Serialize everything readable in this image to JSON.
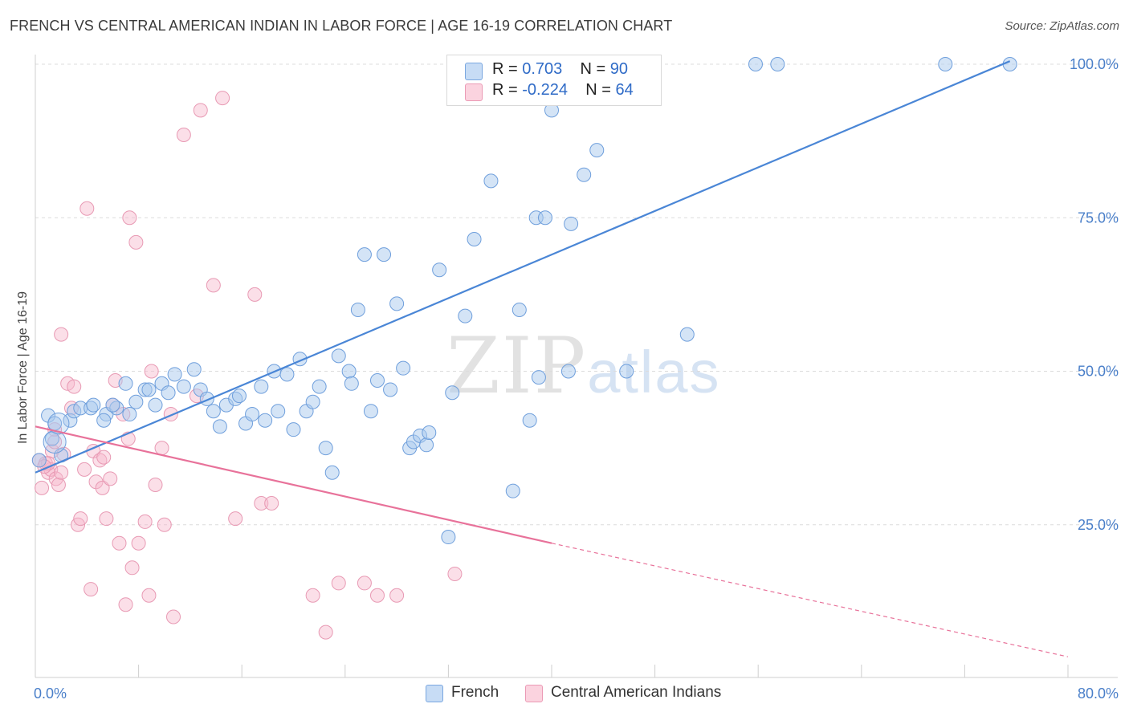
{
  "header": {
    "title": "FRENCH VS CENTRAL AMERICAN INDIAN IN LABOR FORCE | AGE 16-19 CORRELATION CHART",
    "source": "Source: ZipAtlas.com"
  },
  "watermark": {
    "zip": "ZIP",
    "atlas": "atlas"
  },
  "legend": {
    "rows": [
      {
        "r_label": "R =",
        "r_value": "0.703",
        "n_label": "N =",
        "n_value": "90",
        "color": "#a9c9ee"
      },
      {
        "r_label": "R =",
        "r_value": "-0.224",
        "n_label": "N =",
        "n_value": "64",
        "color": "#f6b9cc"
      }
    ]
  },
  "bottom_legend": {
    "french": "French",
    "cai": "Central American Indians"
  },
  "chart_data": {
    "type": "scatter",
    "title": "FRENCH VS CENTRAL AMERICAN INDIAN IN LABOR FORCE | AGE 16-19 CORRELATION CHART",
    "xlabel": "",
    "ylabel": "In Labor Force | Age 16-19",
    "xlim": [
      0,
      80
    ],
    "ylim": [
      0,
      102
    ],
    "x_tick_labels": [
      "0.0%",
      "80.0%"
    ],
    "y_ticks": [
      25,
      50,
      75,
      100
    ],
    "y_tick_labels": [
      "25.0%",
      "50.0%",
      "75.0%",
      "100.0%"
    ],
    "grid": "dashed horizontal",
    "legend_position": "top-center",
    "colors": {
      "french": "#4a86d6",
      "french_fill": "#a9c9ee",
      "cai": "#e8729a",
      "cai_fill": "#f6b9cc"
    },
    "series": [
      {
        "name": "French",
        "trend": {
          "x": [
            0,
            75.5
          ],
          "y": [
            33.5,
            100.5
          ]
        },
        "points": [
          [
            1.0,
            42.8
          ],
          [
            1.3,
            39.0
          ],
          [
            2.0,
            36.3
          ],
          [
            2.7,
            42.0
          ],
          [
            3.0,
            43.5
          ],
          [
            3.5,
            44.0
          ],
          [
            4.3,
            44.0
          ],
          [
            4.5,
            44.5
          ],
          [
            5.5,
            43.0
          ],
          [
            5.3,
            42.0
          ],
          [
            6.3,
            44.0
          ],
          [
            6.0,
            44.5
          ],
          [
            7.0,
            48.0
          ],
          [
            7.3,
            43.0
          ],
          [
            7.8,
            45.0
          ],
          [
            8.5,
            47.0
          ],
          [
            8.8,
            47.0
          ],
          [
            9.3,
            44.5
          ],
          [
            9.8,
            48.0
          ],
          [
            10.3,
            46.5
          ],
          [
            10.8,
            49.5
          ],
          [
            11.5,
            47.5
          ],
          [
            12.3,
            50.3
          ],
          [
            12.8,
            47.0
          ],
          [
            13.3,
            45.5
          ],
          [
            13.8,
            43.5
          ],
          [
            14.3,
            41.0
          ],
          [
            14.8,
            44.5
          ],
          [
            15.5,
            45.5
          ],
          [
            15.8,
            46.0
          ],
          [
            16.3,
            41.5
          ],
          [
            16.8,
            43.0
          ],
          [
            17.5,
            47.5
          ],
          [
            17.8,
            42.0
          ],
          [
            18.5,
            50.0
          ],
          [
            18.8,
            43.5
          ],
          [
            19.5,
            49.5
          ],
          [
            20.0,
            40.5
          ],
          [
            20.5,
            52.0
          ],
          [
            21.0,
            43.5
          ],
          [
            21.5,
            45.0
          ],
          [
            22.0,
            47.5
          ],
          [
            22.5,
            37.5
          ],
          [
            23.0,
            33.5
          ],
          [
            23.5,
            52.5
          ],
          [
            24.3,
            50.0
          ],
          [
            24.5,
            48.0
          ],
          [
            25.0,
            60.0
          ],
          [
            25.5,
            69.0
          ],
          [
            26.0,
            43.5
          ],
          [
            26.5,
            48.5
          ],
          [
            27.0,
            69.0
          ],
          [
            27.5,
            47.0
          ],
          [
            28.0,
            61.0
          ],
          [
            28.5,
            50.5
          ],
          [
            29.0,
            37.5
          ],
          [
            29.3,
            38.5
          ],
          [
            29.8,
            39.5
          ],
          [
            30.3,
            38.0
          ],
          [
            30.5,
            40.0
          ],
          [
            31.3,
            66.5
          ],
          [
            32.0,
            23.0
          ],
          [
            32.3,
            46.5
          ],
          [
            33.3,
            59.0
          ],
          [
            34.0,
            71.5
          ],
          [
            35.0,
            100.0
          ],
          [
            35.3,
            81.0
          ],
          [
            36.5,
            100.0
          ],
          [
            37.0,
            30.5
          ],
          [
            37.5,
            60.0
          ],
          [
            38.3,
            42.0
          ],
          [
            38.8,
            75.0
          ],
          [
            39.0,
            49.0
          ],
          [
            39.5,
            75.0
          ],
          [
            40.0,
            92.5
          ],
          [
            41.0,
            100.0
          ],
          [
            41.3,
            50.0
          ],
          [
            41.5,
            74.0
          ],
          [
            42.0,
            100.0
          ],
          [
            42.5,
            82.0
          ],
          [
            43.5,
            86.0
          ],
          [
            45.3,
            100.0
          ],
          [
            45.8,
            50.0
          ],
          [
            50.5,
            56.0
          ],
          [
            55.8,
            100.0
          ],
          [
            57.5,
            100.0
          ],
          [
            70.5,
            100.0
          ],
          [
            75.5,
            100.0
          ],
          [
            0.3,
            35.5
          ],
          [
            1.5,
            41.5
          ]
        ]
      },
      {
        "name": "Central American Indians",
        "trend": {
          "x": [
            0,
            40.0,
            80.0
          ],
          "y": [
            41.0,
            22.0,
            3.5
          ]
        },
        "points": [
          [
            0.3,
            35.5
          ],
          [
            0.5,
            31.0
          ],
          [
            0.8,
            35.0
          ],
          [
            1.0,
            33.5
          ],
          [
            1.2,
            34.0
          ],
          [
            1.3,
            37.0
          ],
          [
            1.5,
            40.5
          ],
          [
            1.6,
            32.5
          ],
          [
            1.8,
            31.5
          ],
          [
            2.0,
            33.5
          ],
          [
            2.2,
            36.5
          ],
          [
            2.5,
            48.0
          ],
          [
            2.8,
            44.0
          ],
          [
            3.0,
            47.5
          ],
          [
            3.3,
            25.0
          ],
          [
            3.5,
            26.0
          ],
          [
            3.8,
            34.0
          ],
          [
            4.0,
            76.5
          ],
          [
            4.3,
            14.5
          ],
          [
            4.5,
            37.0
          ],
          [
            4.7,
            32.0
          ],
          [
            5.0,
            35.5
          ],
          [
            5.2,
            31.0
          ],
          [
            5.3,
            36.0
          ],
          [
            5.5,
            26.0
          ],
          [
            5.8,
            32.5
          ],
          [
            6.0,
            44.5
          ],
          [
            6.2,
            48.5
          ],
          [
            6.5,
            22.0
          ],
          [
            6.8,
            43.0
          ],
          [
            7.0,
            12.0
          ],
          [
            7.2,
            39.0
          ],
          [
            7.3,
            75.0
          ],
          [
            7.5,
            18.0
          ],
          [
            7.8,
            71.0
          ],
          [
            8.0,
            22.0
          ],
          [
            8.5,
            25.5
          ],
          [
            8.8,
            13.5
          ],
          [
            9.0,
            50.0
          ],
          [
            9.3,
            31.5
          ],
          [
            9.8,
            37.5
          ],
          [
            10.0,
            25.0
          ],
          [
            10.5,
            43.0
          ],
          [
            10.7,
            10.0
          ],
          [
            11.5,
            88.5
          ],
          [
            12.5,
            46.0
          ],
          [
            12.8,
            92.5
          ],
          [
            13.8,
            64.0
          ],
          [
            14.5,
            94.5
          ],
          [
            15.5,
            26.0
          ],
          [
            17.0,
            62.5
          ],
          [
            17.5,
            28.5
          ],
          [
            18.3,
            28.5
          ],
          [
            21.5,
            13.5
          ],
          [
            22.5,
            7.5
          ],
          [
            23.5,
            15.5
          ],
          [
            25.5,
            15.5
          ],
          [
            26.5,
            13.5
          ],
          [
            28.0,
            13.5
          ],
          [
            32.5,
            17.0
          ],
          [
            1.0,
            35.0
          ],
          [
            2.0,
            56.0
          ],
          [
            1.5,
            38.5
          ],
          [
            0.7,
            34.5
          ]
        ]
      }
    ]
  }
}
